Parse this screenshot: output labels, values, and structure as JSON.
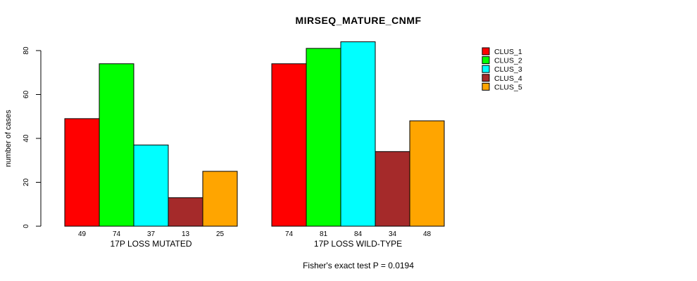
{
  "title": "MIRSEQ_MATURE_CNMF",
  "annotation": "Fisher's exact test P = 0.0194",
  "chart_data": {
    "type": "bar",
    "title": "MIRSEQ_MATURE_CNMF",
    "xlabel": "",
    "ylabel": "number of cases",
    "ylim": [
      0,
      80
    ],
    "yticks": [
      0,
      20,
      40,
      60,
      80
    ],
    "grid": false,
    "legend_position": "right",
    "bar_value_labels": true,
    "groups": [
      "17P LOSS MUTATED",
      "17P LOSS WILD-TYPE"
    ],
    "series": [
      {
        "name": "CLUS_1",
        "color": "#FF0000",
        "values": [
          49,
          74
        ]
      },
      {
        "name": "CLUS_2",
        "color": "#00FF00",
        "values": [
          74,
          81
        ]
      },
      {
        "name": "CLUS_3",
        "color": "#00FFFF",
        "values": [
          37,
          84
        ]
      },
      {
        "name": "CLUS_4",
        "color": "#A52A2A",
        "values": [
          13,
          34
        ]
      },
      {
        "name": "CLUS_5",
        "color": "#FFA500",
        "values": [
          25,
          48
        ]
      }
    ],
    "annotation": "Fisher's exact test P = 0.0194"
  },
  "colors": {
    "background": "#FFFFFF",
    "axis": "#000000",
    "bar_stroke": "#000000",
    "text": "#000000"
  }
}
